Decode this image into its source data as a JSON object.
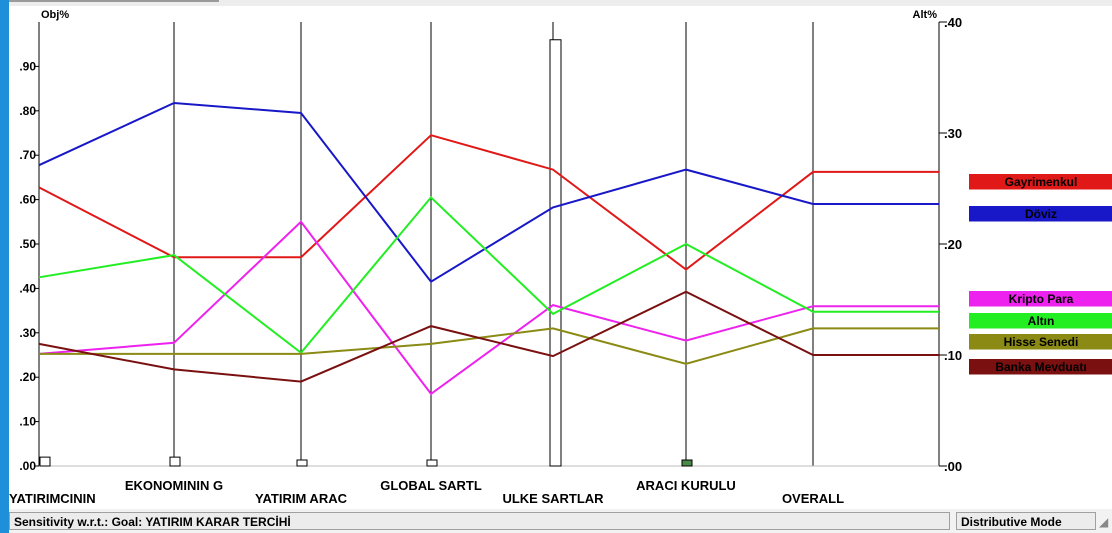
{
  "chart_data": {
    "type": "line",
    "left_axis_label": "Obj%",
    "right_axis_label": "Alt%",
    "left_ticks": [
      ".00",
      ".10",
      ".20",
      ".30",
      ".40",
      ".50",
      ".60",
      ".70",
      ".80",
      ".90"
    ],
    "right_ticks": [
      ".00",
      ".10",
      ".20",
      ".30",
      ".40"
    ],
    "ylim_left": [
      0,
      1.0
    ],
    "ylim_right": [
      0,
      0.4
    ],
    "criteria": [
      "YATIRIMCININ",
      "EKONOMININ G",
      "YATIRIM ARAC",
      "GLOBAL SARTL",
      "ULKE SARTLAR",
      "ARACI KURULU",
      "OVERALL"
    ],
    "objective_priorities": [
      0.02,
      0.02,
      0.01,
      0.01,
      0.96,
      0.01
    ],
    "series": [
      {
        "name": "Gayrimenkul",
        "color": "#e01818",
        "values": [
          0.251,
          0.188,
          0.188,
          0.298,
          0.267,
          0.177,
          0.265
        ]
      },
      {
        "name": "Döviz",
        "color": "#1818c8",
        "values": [
          0.271,
          0.327,
          0.318,
          0.166,
          0.233,
          0.267,
          0.236
        ]
      },
      {
        "name": "Kripto Para",
        "color": "#ee22ee",
        "values": [
          0.101,
          0.111,
          0.22,
          0.065,
          0.145,
          0.113,
          0.144
        ]
      },
      {
        "name": "Altın",
        "color": "#22ee22",
        "values": [
          0.17,
          0.19,
          0.102,
          0.242,
          0.137,
          0.2,
          0.139
        ]
      },
      {
        "name": "Hisse Senedi",
        "color": "#8a8a14",
        "values": [
          0.101,
          0.101,
          0.101,
          0.11,
          0.124,
          0.092,
          0.124
        ]
      },
      {
        "name": "Banka Mevduatı",
        "color": "#7a1010",
        "values": [
          0.11,
          0.087,
          0.076,
          0.126,
          0.099,
          0.157,
          0.1
        ]
      }
    ]
  },
  "status": {
    "sensitivity": "Sensitivity w.r.t.: Goal: YATIRIM KARAR TERCİHİ",
    "mode": "Distributive Mode"
  }
}
